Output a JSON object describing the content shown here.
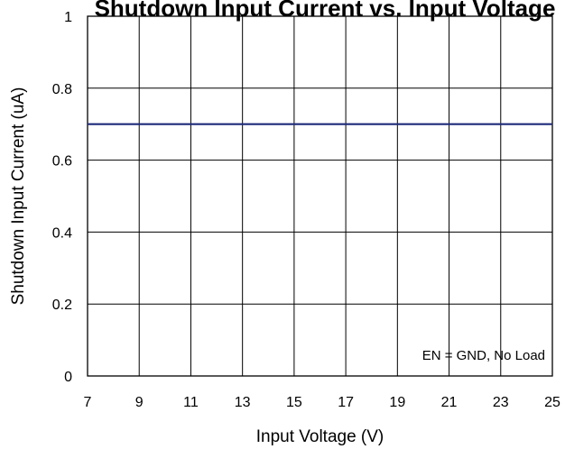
{
  "chart_data": {
    "type": "line",
    "title": "Shutdown Input Current vs. Input Voltage",
    "xlabel": "Input Voltage (V)",
    "ylabel": "Shutdown Input Current (uA)",
    "xlim": [
      7,
      25
    ],
    "ylim": [
      0,
      1
    ],
    "x_ticks": [
      7,
      9,
      11,
      13,
      15,
      17,
      19,
      21,
      23,
      25
    ],
    "y_ticks": [
      0,
      0.2,
      0.4,
      0.6,
      0.8,
      1
    ],
    "y_tick_labels": [
      "0",
      "0.2",
      "0.4",
      "0.6",
      "0.8",
      "1"
    ],
    "grid": true,
    "series": [
      {
        "color": "#1f2a7a",
        "x": [
          7,
          9,
          11,
          13,
          15,
          17,
          19,
          21,
          23,
          25
        ],
        "y": [
          0.7,
          0.7,
          0.7,
          0.7,
          0.7,
          0.7,
          0.7,
          0.7,
          0.7,
          0.7
        ]
      }
    ],
    "annotation": "EN = GND, No Load"
  }
}
